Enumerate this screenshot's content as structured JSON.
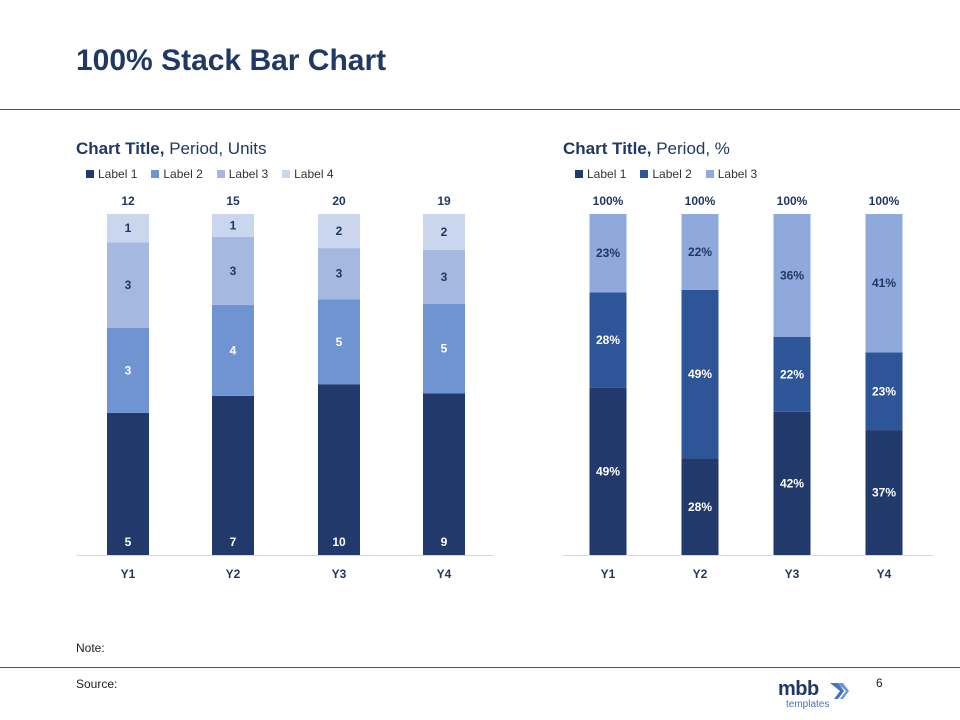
{
  "page": {
    "title": "100% Stack Bar Chart",
    "note_label": "Note:",
    "source_label": "Source:",
    "page_number": "6",
    "logo": {
      "main": "mbb",
      "sub": "templates"
    }
  },
  "colors": {
    "label_1": "#213a6b",
    "label_2_left": "#7094d2",
    "label_3_left": "#a5b9e0",
    "label_4_left": "#cad6ee",
    "label_2_right": "#2e5597",
    "label_3_right": "#8fa9dc",
    "text_dark": "#1f3864",
    "text_light": "#ffffff"
  },
  "charts": {
    "left": {
      "title_bold": "Chart Title,",
      "title_rest": " Period, Units",
      "legend": [
        "Label 1",
        "Label 2",
        "Label 3",
        "Label 4"
      ]
    },
    "right": {
      "title_bold": "Chart Title,",
      "title_rest": " Period, %",
      "legend": [
        "Label 1",
        "Label 2",
        "Label 3"
      ]
    }
  },
  "chart_data": [
    {
      "type": "bar",
      "stacked": "100%",
      "categories": [
        "Y1",
        "Y2",
        "Y3",
        "Y4"
      ],
      "series": [
        {
          "name": "Label 1",
          "values": [
            5,
            7,
            10,
            9
          ]
        },
        {
          "name": "Label 2",
          "values": [
            3,
            4,
            5,
            5
          ]
        },
        {
          "name": "Label 3",
          "values": [
            3,
            3,
            3,
            3
          ]
        },
        {
          "name": "Label 4",
          "values": [
            1,
            1,
            2,
            2
          ]
        }
      ],
      "totals": [
        "12",
        "15",
        "20",
        "19"
      ],
      "legend": "top-left"
    },
    {
      "type": "bar",
      "stacked": "100%",
      "categories": [
        "Y1",
        "Y2",
        "Y3",
        "Y4"
      ],
      "series": [
        {
          "name": "Label 1",
          "values": [
            49,
            28,
            42,
            37
          ],
          "labels": [
            "49%",
            "28%",
            "42%",
            "37%"
          ]
        },
        {
          "name": "Label 2",
          "values": [
            28,
            49,
            22,
            23
          ],
          "labels": [
            "28%",
            "49%",
            "22%",
            "23%"
          ]
        },
        {
          "name": "Label 3",
          "values": [
            23,
            22,
            36,
            41
          ],
          "labels": [
            "23%",
            "22%",
            "36%",
            "41%"
          ]
        }
      ],
      "totals": [
        "100%",
        "100%",
        "100%",
        "100%"
      ],
      "legend": "top-left"
    }
  ]
}
